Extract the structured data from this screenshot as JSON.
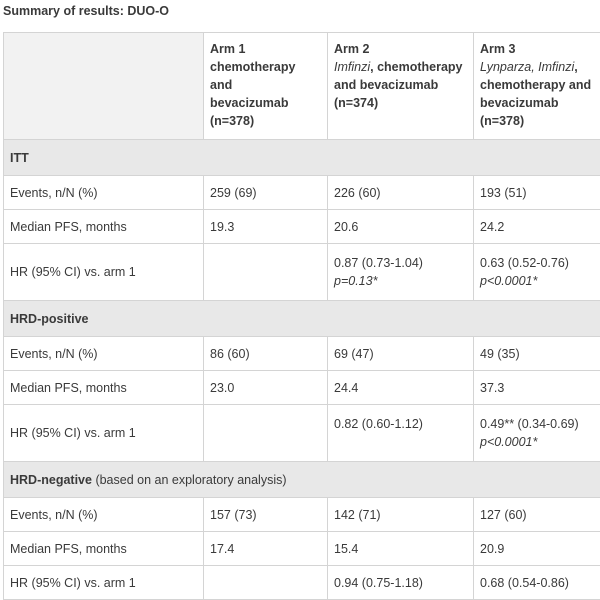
{
  "caption": "Summary of results: DUO-O",
  "columns": [
    {
      "label": "Arm 1",
      "lines": [
        "chemotherapy and",
        "bevacizumab",
        "(n=378)"
      ]
    },
    {
      "label": "Arm 2",
      "italic": "Imfinzi",
      "lines": [
        ", chemotherapy",
        "and bevacizumab",
        "(n=374)"
      ]
    },
    {
      "label": "Arm 3",
      "italic": "Lynparza, Imfinzi",
      "lines": [
        ",",
        "chemotherapy and",
        "bevacizumab",
        "(n=378)"
      ]
    }
  ],
  "sections": [
    {
      "title": "ITT",
      "rows": [
        {
          "label": "Events, n/N (%)",
          "arm1": "259 (69)",
          "arm2": "226 (60)",
          "arm3": "193 (51)"
        },
        {
          "label": "Median PFS, months",
          "arm1": "19.3",
          "arm2": "20.6",
          "arm3": "24.2"
        },
        {
          "label": "HR (95% CI) vs. arm 1",
          "arm1": "",
          "arm2": "0.87 (0.73-1.04)",
          "arm2_p": "p=0.13*",
          "arm3": "0.63 (0.52-0.76)",
          "arm3_p": "p<0.0001*"
        }
      ]
    },
    {
      "title": "HRD-positive",
      "rows": [
        {
          "label": "Events, n/N (%)",
          "arm1": "86 (60)",
          "arm2": "69 (47)",
          "arm3": "49 (35)"
        },
        {
          "label": "Median PFS, months",
          "arm1": "23.0",
          "arm2": "24.4",
          "arm3": "37.3"
        },
        {
          "label": "HR (95% CI) vs. arm 1",
          "arm1": "",
          "arm2": "0.82 (0.60-1.12)",
          "arm3": "0.49** (0.34-0.69)",
          "arm3_p": "p<0.0001*"
        }
      ]
    },
    {
      "title": "HRD-negative",
      "title_note": " (based on an exploratory analysis)",
      "rows": [
        {
          "label": "Events, n/N (%)",
          "arm1": "157 (73)",
          "arm2": "142 (71)",
          "arm3": "127 (60)"
        },
        {
          "label": "Median PFS, months",
          "arm1": "17.4",
          "arm2": "15.4",
          "arm3": "20.9"
        },
        {
          "label": "HR (95% CI) vs. arm 1",
          "arm1": "",
          "arm2": "0.94 (0.75-1.18)",
          "arm3": "0.68 (0.54-0.86)"
        }
      ]
    }
  ]
}
